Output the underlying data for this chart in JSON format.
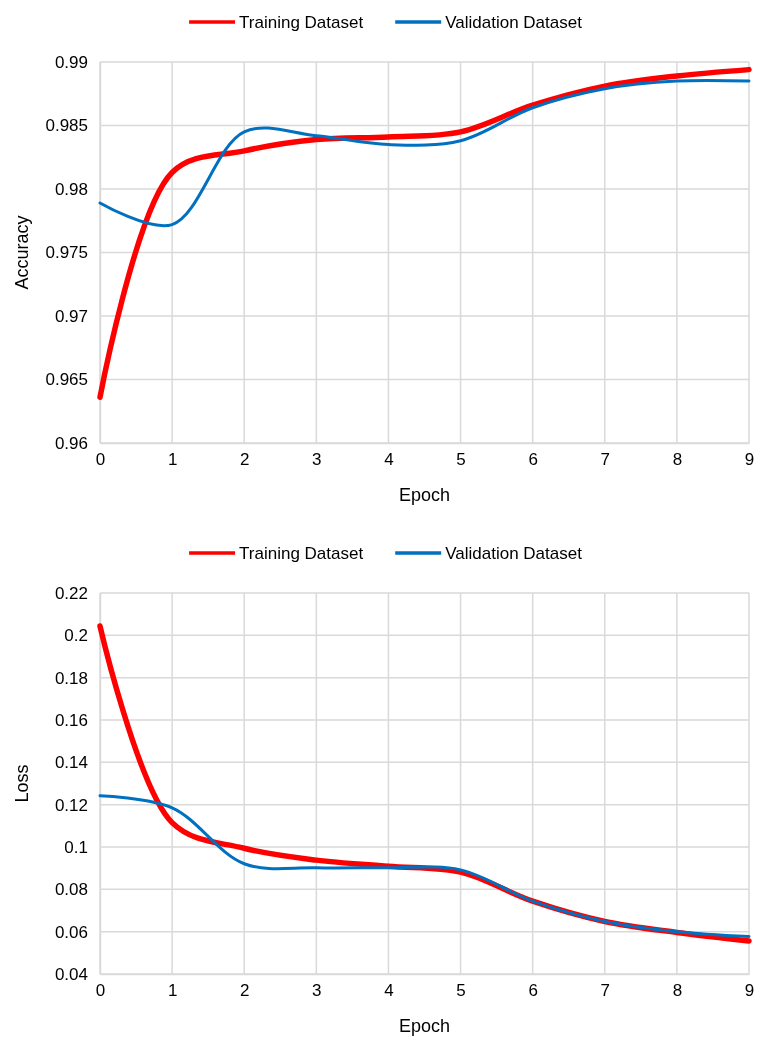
{
  "chart_data": [
    {
      "type": "line",
      "xlabel": "Epoch",
      "ylabel": "Accuracy",
      "x": [
        0,
        1,
        2,
        3,
        4,
        5,
        6,
        7,
        8,
        9
      ],
      "xlim": [
        0,
        9
      ],
      "xticks": [
        0,
        1,
        2,
        3,
        4,
        5,
        6,
        7,
        8,
        9
      ],
      "ylim": [
        0.96,
        0.99
      ],
      "yticks": [
        0.96,
        0.965,
        0.97,
        0.975,
        0.98,
        0.985,
        0.99
      ],
      "grid": true,
      "legend": "top",
      "marker": "none",
      "line_style": "solid",
      "series": [
        {
          "name": "Training Dataset",
          "color": "#ff0000",
          "values": [
            0.9636,
            0.9813,
            0.983,
            0.9839,
            0.9841,
            0.9845,
            0.9866,
            0.9881,
            0.9889,
            0.9894
          ]
        },
        {
          "name": "Validation Dataset",
          "color": "#0070c0",
          "values": [
            0.9789,
            0.9772,
            0.9845,
            0.9842,
            0.9835,
            0.9838,
            0.9864,
            0.9879,
            0.9885,
            0.9885
          ]
        }
      ]
    },
    {
      "type": "line",
      "xlabel": "Epoch",
      "ylabel": "Loss",
      "x": [
        0,
        1,
        2,
        3,
        4,
        5,
        6,
        7,
        8,
        9
      ],
      "xlim": [
        0,
        9
      ],
      "xticks": [
        0,
        1,
        2,
        3,
        4,
        5,
        6,
        7,
        8,
        9
      ],
      "ylim": [
        0.04,
        0.22
      ],
      "yticks": [
        0.04,
        0.06,
        0.08,
        {
          "value": 0.1,
          "label": "0.1"
        },
        0.12,
        0.14,
        0.16,
        0.18,
        {
          "value": 0.2,
          "label": "0.2"
        },
        0.22
      ],
      "grid": true,
      "legend": "top",
      "marker": "none",
      "line_style": "solid",
      "series": [
        {
          "name": "Training Dataset",
          "color": "#ff0000",
          "values": [
            0.2044,
            0.1115,
            0.0994,
            0.0938,
            0.0909,
            0.0881,
            0.0744,
            0.0648,
            0.0596,
            0.0556
          ]
        },
        {
          "name": "Validation Dataset",
          "color": "#0070c0",
          "values": [
            0.1242,
            0.1185,
            0.0921,
            0.0902,
            0.0902,
            0.0892,
            0.0744,
            0.0648,
            0.06,
            0.0577
          ]
        }
      ]
    }
  ]
}
